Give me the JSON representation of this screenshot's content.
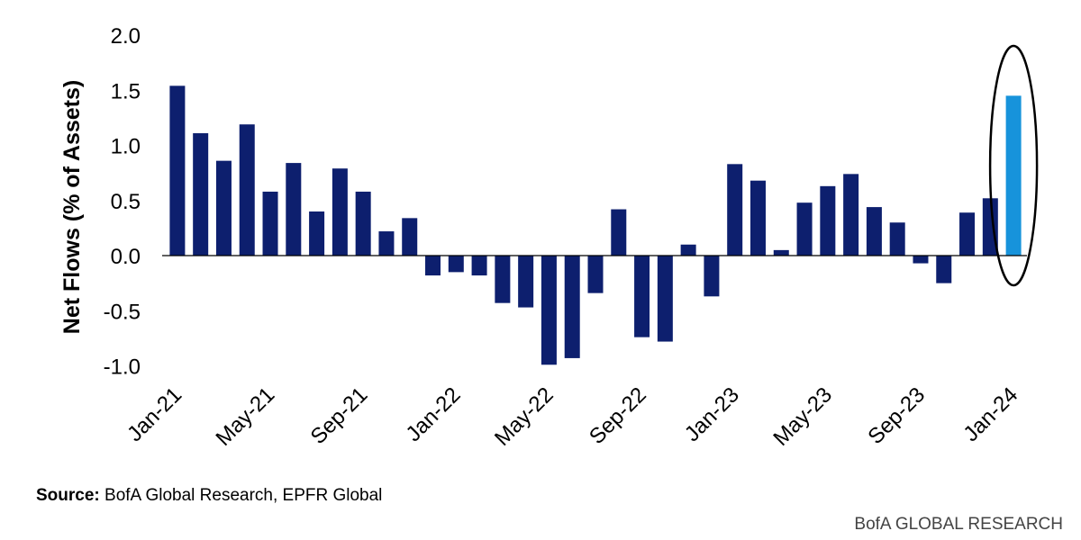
{
  "chart_data": {
    "type": "bar",
    "ylabel": "Net Flows (% of Assets)",
    "xlabel": "",
    "ylim": [
      -1.0,
      2.0
    ],
    "yticks": [
      "2.0",
      "1.5",
      "1.0",
      "0.5",
      "0.0",
      "-0.5",
      "-1.0"
    ],
    "ytick_values": [
      2.0,
      1.5,
      1.0,
      0.5,
      0.0,
      -0.5,
      -1.0
    ],
    "xtick_labels": [
      "Jan-21",
      "May-21",
      "Sep-21",
      "Jan-22",
      "May-22",
      "Sep-22",
      "Jan-23",
      "May-23",
      "Sep-23",
      "Jan-24"
    ],
    "categories": [
      "Jan-21",
      "Feb-21",
      "Mar-21",
      "Apr-21",
      "May-21",
      "Jun-21",
      "Jul-21",
      "Aug-21",
      "Sep-21",
      "Oct-21",
      "Nov-21",
      "Dec-21",
      "Jan-22",
      "Feb-22",
      "Mar-22",
      "Apr-22",
      "May-22",
      "Jun-22",
      "Jul-22",
      "Aug-22",
      "Sep-22",
      "Oct-22",
      "Nov-22",
      "Dec-22",
      "Jan-23",
      "Feb-23",
      "Mar-23",
      "Apr-23",
      "May-23",
      "Jun-23",
      "Jul-23",
      "Aug-23",
      "Sep-23",
      "Oct-23",
      "Nov-23",
      "Dec-23",
      "Jan-24"
    ],
    "values": [
      1.54,
      1.11,
      0.86,
      1.19,
      0.58,
      0.84,
      0.4,
      0.79,
      0.58,
      0.22,
      0.34,
      -0.18,
      -0.15,
      -0.18,
      -0.43,
      -0.47,
      -0.99,
      -0.93,
      -0.34,
      0.42,
      -0.74,
      -0.78,
      0.1,
      -0.37,
      0.83,
      0.68,
      0.05,
      0.48,
      0.63,
      0.74,
      0.44,
      0.3,
      -0.07,
      -0.25,
      0.39,
      0.52,
      1.45
    ],
    "colors": {
      "bar": "#0d1f6e",
      "highlight": "#1793db",
      "axis": "#000000"
    },
    "highlight_index": 36,
    "grid": false,
    "legend": "none"
  },
  "footer": {
    "source_label": "Source:",
    "source_text": " BofA Global Research, EPFR Global",
    "brand": "BofA GLOBAL RESEARCH"
  }
}
